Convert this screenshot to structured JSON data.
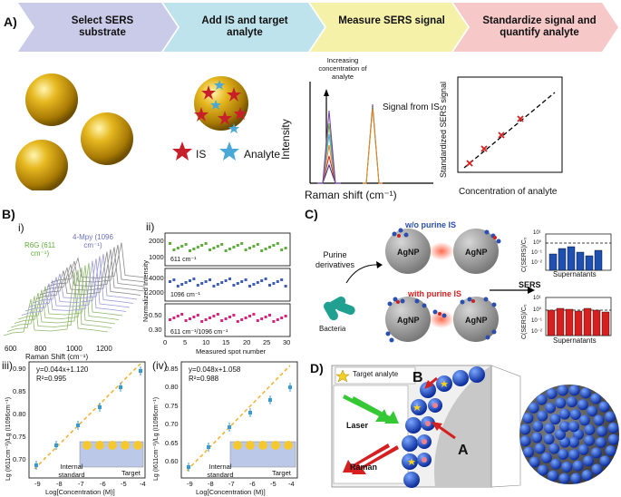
{
  "panelA": {
    "label": "A)",
    "steps": [
      {
        "title": "Select SERS substrate",
        "color": "#c9cbe8"
      },
      {
        "title": "Add IS and target analyte",
        "color": "#bfe3ec"
      },
      {
        "title": "Measure SERS signal",
        "color": "#f5f1a8"
      },
      {
        "title": "Standardize signal and quantify analyte",
        "color": "#f6c8c8"
      }
    ],
    "legend": {
      "is_label": "IS",
      "analyte_label": "Analyte"
    },
    "spectrum": {
      "annotation": "Increasing concentration of analyte",
      "signal_is": "Signal from IS",
      "ylabel": "Intensity",
      "xlabel": "Raman shift (cm⁻¹)"
    },
    "calib": {
      "ylabel": "Standardized SERS signal",
      "xlabel": "Concentration of analyte"
    }
  },
  "panelB": {
    "label": "B)",
    "i": {
      "label": "i)",
      "peak1": "R6G (611 cm⁻¹)",
      "peak2": "4-Mpy (1096 cm⁻¹)",
      "xlabel": "Raman Shift (cm⁻¹)",
      "xticks": [
        "600",
        "800",
        "1000",
        "1200"
      ]
    },
    "ii": {
      "label": "ii)",
      "ylabel": "Normalized Intensity",
      "xlabel": "Measured spot number",
      "xticks": [
        "0",
        "5",
        "10",
        "15",
        "20",
        "25",
        "30"
      ],
      "sub": [
        {
          "label": "611 cm⁻¹",
          "yticks": [
            "2000",
            "1000"
          ],
          "color": "#5fae3c"
        },
        {
          "label": "1096 cm⁻¹",
          "yticks": [
            "4000",
            "2000"
          ],
          "color": "#3d5fb5"
        },
        {
          "label": "611 cm⁻¹/1096 cm⁻¹",
          "yticks": [
            "0.50",
            "0.30"
          ],
          "color": "#d6257a"
        }
      ]
    },
    "iii": {
      "label": "iii)",
      "eq": "y=0.044x+1.120",
      "r2": "R²=0.995",
      "ylabel": "Lg (I611cm⁻¹)/Lg (I1096cm⁻¹)",
      "xlabel": "Log[Concentration (M)]",
      "xticks": [
        "-9",
        "-8",
        "-7",
        "-6",
        "-5",
        "-4"
      ],
      "yticks": [
        "0.90",
        "0.85",
        "0.80",
        "0.75",
        "0.70"
      ],
      "internal": "Internal standard",
      "target": "Target"
    },
    "iv": {
      "label": "(iv)",
      "eq": "y=0.048x+1.058",
      "r2": "R²=0.988",
      "ylabel": "Lg (I611cm⁻¹)/Lg (I1096cm⁻¹)",
      "xlabel": "Log[Concentration (M)]",
      "xticks": [
        "-9",
        "-8",
        "-7",
        "-6",
        "-5",
        "-4"
      ],
      "yticks": [
        "0.85",
        "0.80",
        "0.75",
        "0.70",
        "0.65",
        "0.60"
      ],
      "internal": "Internal standard",
      "target": "Target"
    }
  },
  "panelC": {
    "label": "C)",
    "without": "w/o purine IS",
    "with": "with purine IS",
    "agnp": "AgNP",
    "purine": "Purine derivatives",
    "bacteria": "Bacteria",
    "sers": "SERS",
    "bar_ylabel": "C(SERS)/C₀",
    "bar_xlabel": "Supernatants",
    "yticks_top": [
      "10¹",
      "10⁰",
      "10⁻¹",
      "10⁻²"
    ],
    "yticks_bot": [
      "10¹",
      "10⁰",
      "10⁻¹",
      "10⁻²"
    ]
  },
  "panelD": {
    "label": "D)",
    "target": "Target analyte",
    "laser": "Laser",
    "raman": "Raman",
    "labelA": "A",
    "labelB": "B"
  }
}
